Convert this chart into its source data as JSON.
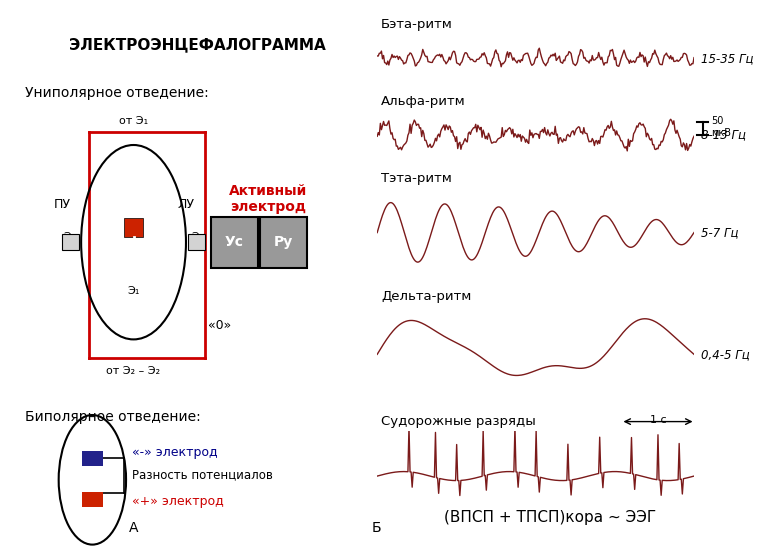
{
  "title": "ЭЛЕКТРОЭНЦЕФАЛОГРАММА",
  "unipolar_label": "Униполярное отведение:",
  "bipolar_label": "Биполярное отведение:",
  "active_electrode_label": "Активный\nэлектрод",
  "zero_label": "«0»",
  "from_e1_label": "от Э₁",
  "from_e2_label": "от Э₂ – Э₂",
  "pu_label": "ПУ",
  "lu_label": "ЛУ",
  "e1_label": "Э₁",
  "e2_left_label": "Э₂",
  "e2_right_label": "Э₂",
  "us_label": "Ус",
  "ru_label": "Ру",
  "a_label": "А",
  "b_label": "Б",
  "neg_electrode_label": "«-» электрод",
  "pos_electrode_label": "«+» электрод",
  "diff_label": "Разность потенциалов",
  "eeg_label": "(ВПСП + ТПСП)кора ~ ЭЭГ",
  "rhythms": [
    "Бэта-ритм",
    "Альфа-ритм",
    "Тэта-ритм",
    "Дельта-ритм",
    "Судорожные разряды"
  ],
  "rhythm_freqs": [
    "15-35 Гц",
    "8-13 Гц",
    "5-7 Гц",
    "0,4-5 Гц",
    ""
  ],
  "scale_label": "50\nмкВ",
  "time_label": "1 с",
  "bg_color": "#ffffff",
  "grid_color": "#c8d8c8",
  "wave_color": "#7b1a1a",
  "red_color": "#cc0000",
  "blue_dark": "#000066",
  "box_color": "#888888",
  "head_color": "#000000",
  "electrode_red": "#cc2200",
  "electrode_blue": "#22228a"
}
